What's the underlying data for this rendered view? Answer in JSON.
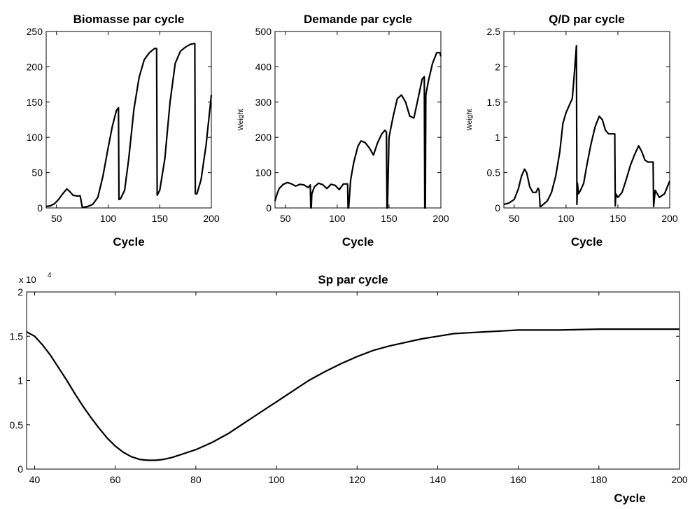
{
  "chart_data": [
    {
      "type": "line",
      "title": "Biomasse par cycle",
      "xlabel": "Cycle",
      "ylabel": "",
      "xlim": [
        40,
        200
      ],
      "ylim": [
        0,
        250
      ],
      "xticks": [
        {
          "v": 50,
          "label": "50"
        },
        {
          "v": 100,
          "label": "100"
        },
        {
          "v": 150,
          "label": "150"
        },
        {
          "v": 200,
          "label": "200"
        }
      ],
      "yticks": [
        {
          "v": 0,
          "label": "0"
        },
        {
          "v": 50,
          "label": "50"
        },
        {
          "v": 100,
          "label": "100"
        },
        {
          "v": 150,
          "label": "150"
        },
        {
          "v": 200,
          "label": "200"
        },
        {
          "v": 250,
          "label": "250"
        }
      ],
      "series": [
        {
          "x": [
            40,
            44,
            48,
            52,
            56,
            60,
            63,
            66,
            70,
            73,
            74,
            75,
            76,
            80,
            85,
            90,
            95,
            100,
            104,
            108,
            110,
            110.5,
            112,
            116,
            120,
            125,
            130,
            135,
            140,
            145,
            147,
            147.5,
            150,
            155,
            160,
            165,
            170,
            175,
            180,
            184,
            184.5,
            186,
            190,
            195,
            200
          ],
          "y": [
            2,
            3,
            6,
            12,
            20,
            27,
            23,
            18,
            17,
            17,
            8,
            1,
            1,
            2,
            5,
            15,
            45,
            85,
            115,
            138,
            142,
            12,
            13,
            25,
            70,
            140,
            185,
            210,
            220,
            226,
            226,
            18,
            25,
            70,
            150,
            205,
            222,
            228,
            232,
            233,
            20,
            20,
            40,
            90,
            160
          ]
        }
      ]
    },
    {
      "type": "line",
      "title": "Demande par cycle",
      "xlabel": "Cycle",
      "ylabel": "Weight",
      "xlim": [
        40,
        200
      ],
      "ylim": [
        0,
        500
      ],
      "xticks": [
        {
          "v": 50,
          "label": "50"
        },
        {
          "v": 100,
          "label": "100"
        },
        {
          "v": 150,
          "label": "150"
        },
        {
          "v": 200,
          "label": "200"
        }
      ],
      "yticks": [
        {
          "v": 0,
          "label": "0"
        },
        {
          "v": 100,
          "label": "100"
        },
        {
          "v": 200,
          "label": "200"
        },
        {
          "v": 300,
          "label": "300"
        },
        {
          "v": 400,
          "label": "400"
        },
        {
          "v": 500,
          "label": "500"
        }
      ],
      "series": [
        {
          "x": [
            40,
            42,
            44,
            48,
            52,
            56,
            60,
            64,
            68,
            72,
            74,
            74.5,
            75,
            75.5,
            78,
            82,
            86,
            90,
            94,
            98,
            102,
            106,
            110,
            110.5,
            111,
            113,
            116,
            120,
            123,
            127,
            131,
            135,
            139,
            143,
            146,
            147.5,
            148,
            148.5,
            150,
            154,
            158,
            162,
            166,
            170,
            174,
            178,
            182,
            184,
            184.5,
            185,
            185.5,
            188,
            192,
            196,
            199,
            200
          ],
          "y": [
            20,
            40,
            55,
            67,
            72,
            68,
            62,
            67,
            65,
            58,
            65,
            0,
            0,
            40,
            60,
            70,
            66,
            55,
            67,
            64,
            52,
            68,
            68,
            0,
            0,
            80,
            130,
            175,
            190,
            185,
            170,
            150,
            185,
            210,
            220,
            215,
            0,
            0,
            200,
            260,
            310,
            320,
            300,
            260,
            255,
            310,
            365,
            372,
            0,
            0,
            320,
            360,
            410,
            440,
            440,
            430
          ]
        }
      ]
    },
    {
      "type": "line",
      "title": "Q/D par cycle",
      "xlabel": "Cycle",
      "ylabel": "Weight",
      "xlim": [
        40,
        200
      ],
      "ylim": [
        0,
        2.5
      ],
      "xticks": [
        {
          "v": 50,
          "label": "50"
        },
        {
          "v": 100,
          "label": "100"
        },
        {
          "v": 150,
          "label": "150"
        },
        {
          "v": 200,
          "label": "200"
        }
      ],
      "yticks": [
        {
          "v": 0,
          "label": "0"
        },
        {
          "v": 0.5,
          "label": "0.5"
        },
        {
          "v": 1,
          "label": "1"
        },
        {
          "v": 1.5,
          "label": "1.5"
        },
        {
          "v": 2,
          "label": "2"
        },
        {
          "v": 2.5,
          "label": "2.5"
        }
      ],
      "series": [
        {
          "x": [
            40,
            45,
            50,
            54,
            57,
            60,
            62,
            65,
            68,
            71,
            73,
            74,
            75,
            75.5,
            78,
            82,
            86,
            90,
            94,
            97,
            100,
            103,
            106,
            108,
            110,
            110.5,
            111,
            112,
            114,
            117,
            120,
            124,
            128,
            132,
            135,
            138,
            141,
            144,
            147,
            147.5,
            148,
            150,
            154,
            158,
            162,
            166,
            170,
            173,
            176,
            179,
            182,
            184,
            184.5,
            186,
            190,
            195,
            200
          ],
          "y": [
            0.05,
            0.07,
            0.12,
            0.27,
            0.45,
            0.55,
            0.5,
            0.3,
            0.22,
            0.22,
            0.28,
            0.25,
            0.02,
            0.02,
            0.05,
            0.1,
            0.22,
            0.45,
            0.8,
            1.2,
            1.35,
            1.45,
            1.55,
            1.9,
            2.3,
            0.05,
            0.35,
            0.2,
            0.25,
            0.35,
            0.6,
            0.9,
            1.15,
            1.3,
            1.25,
            1.1,
            1.05,
            1.05,
            1.05,
            0.03,
            0.2,
            0.15,
            0.22,
            0.4,
            0.6,
            0.75,
            0.88,
            0.8,
            0.68,
            0.65,
            0.65,
            0.65,
            0.02,
            0.25,
            0.15,
            0.2,
            0.38
          ]
        }
      ]
    },
    {
      "type": "line",
      "title": "Sp par cycle",
      "xlabel": "Cycle",
      "ylabel": "",
      "y_exponent": {
        "base": "x 10",
        "power": "4"
      },
      "xlim": [
        38,
        200
      ],
      "ylim": [
        0,
        2
      ],
      "xticks": [
        {
          "v": 40,
          "label": "40"
        },
        {
          "v": 60,
          "label": "60"
        },
        {
          "v": 80,
          "label": "80"
        },
        {
          "v": 100,
          "label": "100"
        },
        {
          "v": 120,
          "label": "120"
        },
        {
          "v": 140,
          "label": "140"
        },
        {
          "v": 160,
          "label": "160"
        },
        {
          "v": 180,
          "label": "180"
        },
        {
          "v": 200,
          "label": "200"
        }
      ],
      "yticks": [
        {
          "v": 0,
          "label": "0"
        },
        {
          "v": 0.5,
          "label": "0.5"
        },
        {
          "v": 1,
          "label": "1"
        },
        {
          "v": 1.5,
          "label": "1.5"
        },
        {
          "v": 2,
          "label": "2"
        }
      ],
      "series": [
        {
          "x": [
            38,
            40,
            42,
            44,
            46,
            48,
            50,
            52,
            54,
            56,
            58,
            60,
            62,
            64,
            66,
            68,
            70,
            72,
            74,
            76,
            78,
            80,
            84,
            88,
            92,
            96,
            100,
            104,
            108,
            112,
            116,
            120,
            124,
            128,
            132,
            136,
            140,
            144,
            148,
            152,
            156,
            160,
            170,
            180,
            190,
            200
          ],
          "y": [
            1.55,
            1.5,
            1.4,
            1.28,
            1.14,
            1.0,
            0.85,
            0.71,
            0.58,
            0.46,
            0.35,
            0.26,
            0.19,
            0.14,
            0.11,
            0.1,
            0.1,
            0.11,
            0.13,
            0.16,
            0.19,
            0.22,
            0.3,
            0.4,
            0.52,
            0.64,
            0.76,
            0.88,
            1.0,
            1.1,
            1.19,
            1.27,
            1.34,
            1.39,
            1.43,
            1.47,
            1.5,
            1.53,
            1.54,
            1.55,
            1.56,
            1.57,
            1.57,
            1.58,
            1.58,
            1.58
          ]
        }
      ]
    }
  ]
}
